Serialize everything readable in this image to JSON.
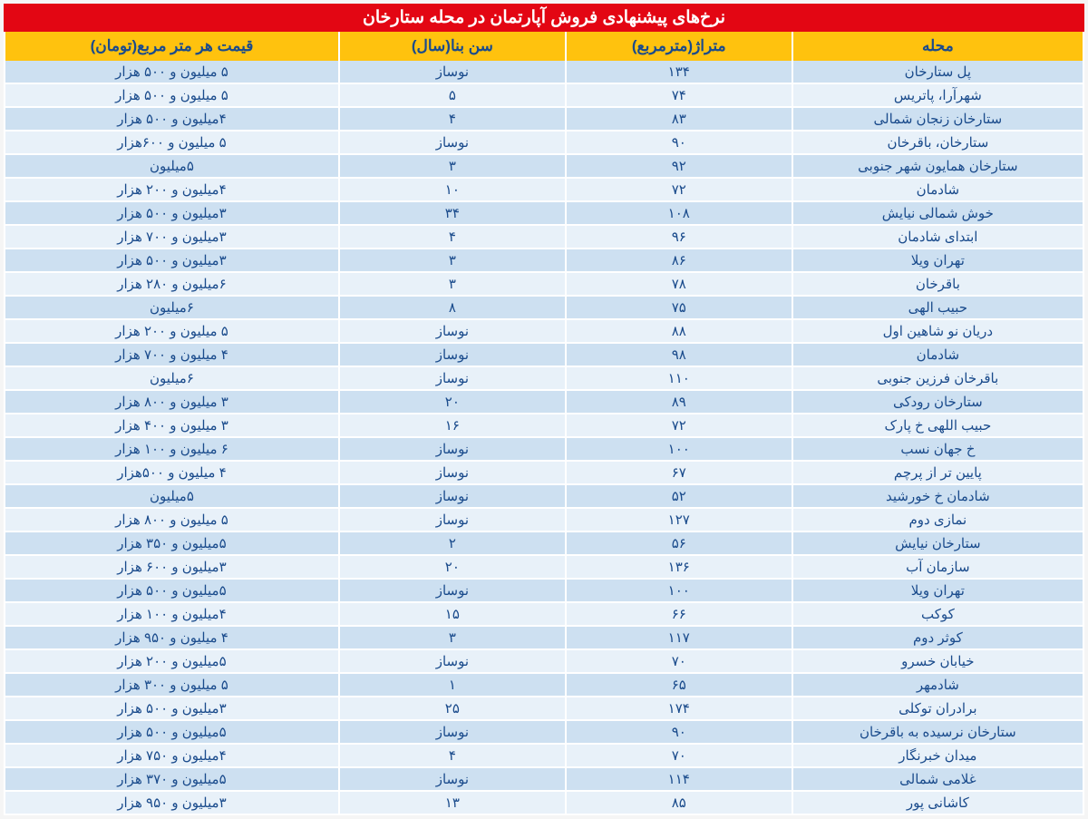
{
  "title": "نرخ‌های پیشنهادی فروش آپارتمان در محله ستارخان",
  "colors": {
    "title_bg": "#e30613",
    "title_text": "#ffffff",
    "header_bg": "#ffc20e",
    "header_text": "#1a4b8c",
    "row_odd_bg": "#cde0f1",
    "row_even_bg": "#e8f1f9",
    "cell_text": "#1a4b8c"
  },
  "columns": [
    {
      "key": "location",
      "label": "محله",
      "width": "27%"
    },
    {
      "key": "area",
      "label": "متراژ(مترمربع)",
      "width": "21%"
    },
    {
      "key": "age",
      "label": "سن بنا(سال)",
      "width": "21%"
    },
    {
      "key": "price",
      "label": "قیمت هر متر مربع(تومان)",
      "width": "31%"
    }
  ],
  "rows": [
    {
      "location": "پل ستارخان",
      "area": "۱۳۴",
      "age": "نوساز",
      "price": "۵ میلیون و ۵۰۰ هزار"
    },
    {
      "location": "شهرآرا، پاتریس",
      "area": "۷۴",
      "age": "۵",
      "price": "۵ میلیون و ۵۰۰ هزار"
    },
    {
      "location": "ستارخان زنجان شمالی",
      "area": "۸۳",
      "age": "۴",
      "price": "۴میلیون و ۵۰۰ هزار"
    },
    {
      "location": "ستارخان، باقرخان",
      "area": "۹۰",
      "age": "نوساز",
      "price": "۵ میلیون و ۶۰۰هزار"
    },
    {
      "location": "ستارخان همایون شهر جنوبی",
      "area": "۹۲",
      "age": "۳",
      "price": "۵میلیون"
    },
    {
      "location": "شادمان",
      "area": "۷۲",
      "age": "۱۰",
      "price": "۴میلیون و ۲۰۰ هزار"
    },
    {
      "location": "خوش شمالی نیایش",
      "area": "۱۰۸",
      "age": "۳۴",
      "price": "۳میلیون و ۵۰۰ هزار"
    },
    {
      "location": "ابتدای شادمان",
      "area": "۹۶",
      "age": "۴",
      "price": "۳میلیون و ۷۰۰ هزار"
    },
    {
      "location": "تهران ویلا",
      "area": "۸۶",
      "age": "۳",
      "price": "۳میلیون و ۵۰۰ هزار"
    },
    {
      "location": "باقرخان",
      "area": "۷۸",
      "age": "۳",
      "price": "۶میلیون و ۲۸۰ هزار"
    },
    {
      "location": "حبیب الهی",
      "area": "۷۵",
      "age": "۸",
      "price": "۶میلیون"
    },
    {
      "location": "دریان نو شاهین اول",
      "area": "۸۸",
      "age": "نوساز",
      "price": "۵ میلیون و ۲۰۰ هزار"
    },
    {
      "location": "شادمان",
      "area": "۹۸",
      "age": "نوساز",
      "price": "۴ میلیون و ۷۰۰ هزار"
    },
    {
      "location": "باقرخان فرزین جنوبی",
      "area": "۱۱۰",
      "age": "نوساز",
      "price": "۶میلیون"
    },
    {
      "location": "ستارخان رودکی",
      "area": "۸۹",
      "age": "۲۰",
      "price": "۳ میلیون و ۸۰۰ هزار"
    },
    {
      "location": "حبیب اللهی خ پارک",
      "area": "۷۲",
      "age": "۱۶",
      "price": "۳ میلیون و ۴۰۰ هزار"
    },
    {
      "location": "خ جهان نسب",
      "area": "۱۰۰",
      "age": "نوساز",
      "price": "۶ میلیون و ۱۰۰ هزار"
    },
    {
      "location": "پایین تر از پرچم",
      "area": "۶۷",
      "age": "نوساز",
      "price": "۴ میلیون و ۵۰۰هزار"
    },
    {
      "location": "شادمان خ خورشید",
      "area": "۵۲",
      "age": "نوساز",
      "price": "۵میلیون"
    },
    {
      "location": "نمازی دوم",
      "area": "۱۲۷",
      "age": "نوساز",
      "price": "۵ میلیون و ۸۰۰ هزار"
    },
    {
      "location": "ستارخان نیایش",
      "area": "۵۶",
      "age": "۲",
      "price": "۵میلیون و ۳۵۰ هزار"
    },
    {
      "location": "سازمان آب",
      "area": "۱۳۶",
      "age": "۲۰",
      "price": "۳میلیون و ۶۰۰ هزار"
    },
    {
      "location": "تهران ویلا",
      "area": "۱۰۰",
      "age": "نوساز",
      "price": "۵میلیون و ۵۰۰ هزار"
    },
    {
      "location": "کوکب",
      "area": "۶۶",
      "age": "۱۵",
      "price": "۴میلیون و ۱۰۰ هزار"
    },
    {
      "location": "کوثر دوم",
      "area": "۱۱۷",
      "age": "۳",
      "price": "۴ میلیون و ۹۵۰ هزار"
    },
    {
      "location": "خیابان خسرو",
      "area": "۷۰",
      "age": "نوساز",
      "price": "۵میلیون و ۲۰۰ هزار"
    },
    {
      "location": "شادمهر",
      "area": "۶۵",
      "age": "۱",
      "price": "۵ میلیون و ۳۰۰ هزار"
    },
    {
      "location": "برادران توکلی",
      "area": "۱۷۴",
      "age": "۲۵",
      "price": "۳میلیون و ۵۰۰ هزار"
    },
    {
      "location": "ستارخان نرسیده به باقرخان",
      "area": "۹۰",
      "age": "نوساز",
      "price": "۵میلیون و ۵۰۰ هزار"
    },
    {
      "location": "میدان خبرنگار",
      "area": "۷۰",
      "age": "۴",
      "price": "۴میلیون و ۷۵۰ هزار"
    },
    {
      "location": "غلامی شمالی",
      "area": "۱۱۴",
      "age": "نوساز",
      "price": "۵میلیون و ۳۷۰ هزار"
    },
    {
      "location": "کاشانی پور",
      "area": "۸۵",
      "age": "۱۳",
      "price": "۳میلیون و ۹۵۰ هزار"
    }
  ]
}
